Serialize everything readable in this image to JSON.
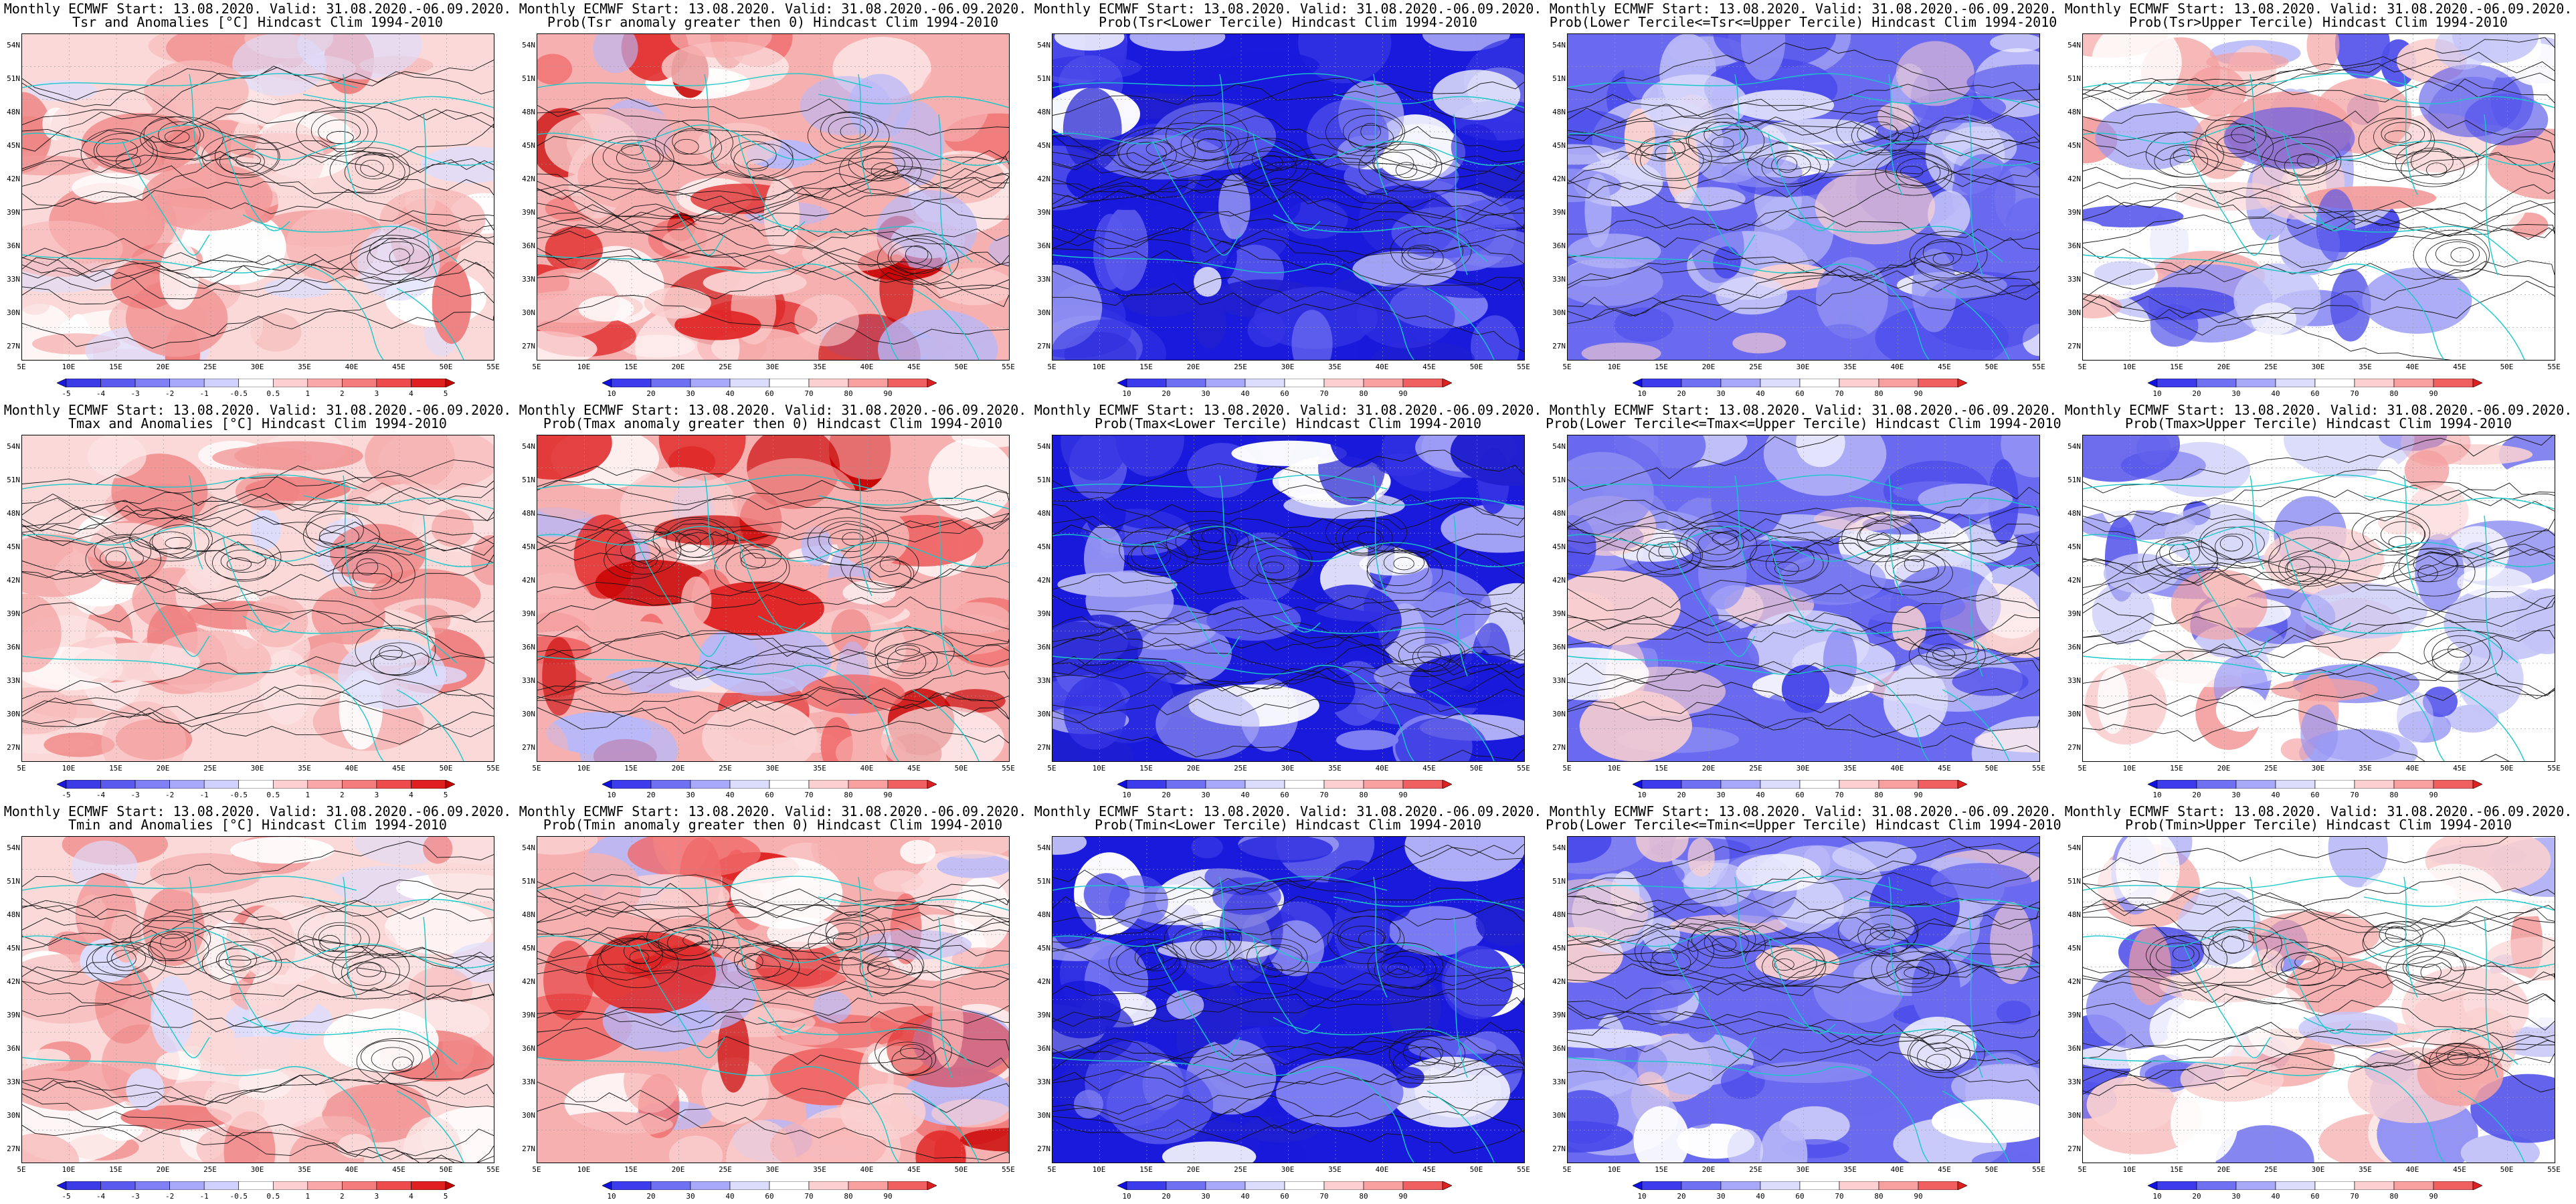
{
  "header": "Monthly ECMWF Start: 13.08.2020. Valid: 31.08.2020.-06.09.2020.",
  "latitude_labels": [
    "54N",
    "51N",
    "48N",
    "45N",
    "42N",
    "39N",
    "36N",
    "33N",
    "30N",
    "27N"
  ],
  "longitude_labels": [
    "5E",
    "10E",
    "15E",
    "20E",
    "25E",
    "30E",
    "35E",
    "40E",
    "45E",
    "50E",
    "55E"
  ],
  "anomaly_colorbar": {
    "labels": [
      "-5",
      "-4",
      "-3",
      "-2",
      "-1",
      "-0.5",
      "0.5",
      "1",
      "2",
      "3",
      "4",
      "5"
    ],
    "colors": [
      "#1a1adc",
      "#3c3ce6",
      "#5a5aee",
      "#8080f4",
      "#a8a8f8",
      "#d0d0fc",
      "#ffffff",
      "#fcd0d0",
      "#f8a8a8",
      "#f47c7c",
      "#ee4c4c",
      "#e02020",
      "#c80000"
    ]
  },
  "probability_colorbar": {
    "labels": [
      "10",
      "20",
      "30",
      "40",
      "60",
      "70",
      "80",
      "90"
    ],
    "colors": [
      "#1010e0",
      "#3c3cec",
      "#7070f2",
      "#a8a8f8",
      "#dcdcfc",
      "#ffffff",
      "#fcd0d0",
      "#f8a0a0",
      "#f06060",
      "#e02020"
    ]
  },
  "rows": [
    {
      "variable": "Tsr",
      "panels": [
        {
          "title": "Tsr and Anomalies [°C] Hindcast Clim 1994-2010",
          "colorbar": "anomaly",
          "pattern": "warm-mild"
        },
        {
          "title": "Prob(Tsr anomaly greater then 0) Hindcast Clim 1994-2010",
          "colorbar": "probability",
          "pattern": "warm"
        },
        {
          "title": "Prob(Tsr<Lower Tercile) Hindcast Clim 1994-2010",
          "colorbar": "probability",
          "pattern": "blue-strong"
        },
        {
          "title": "Prob(Lower Tercile<=Tsr<=Upper Tercile) Hindcast Clim 1994-2010",
          "colorbar": "probability",
          "pattern": "blue-medium"
        },
        {
          "title": "Prob(Tsr>Upper Tercile) Hindcast Clim 1994-2010",
          "colorbar": "probability",
          "pattern": "mixed"
        }
      ]
    },
    {
      "variable": "Tmax",
      "panels": [
        {
          "title": "Tmax and Anomalies [°C] Hindcast Clim 1994-2010",
          "colorbar": "anomaly",
          "pattern": "warm-mild"
        },
        {
          "title": "Prob(Tmax anomaly greater then 0) Hindcast Clim 1994-2010",
          "colorbar": "probability",
          "pattern": "warm"
        },
        {
          "title": "Prob(Tmax<Lower Tercile) Hindcast Clim 1994-2010",
          "colorbar": "probability",
          "pattern": "blue-strong"
        },
        {
          "title": "Prob(Lower Tercile<=Tmax<=Upper Tercile) Hindcast Clim 1994-2010",
          "colorbar": "probability",
          "pattern": "blue-medium"
        },
        {
          "title": "Prob(Tmax>Upper Tercile) Hindcast Clim 1994-2010",
          "colorbar": "probability",
          "pattern": "mixed"
        }
      ]
    },
    {
      "variable": "Tmin",
      "panels": [
        {
          "title": "Tmin and Anomalies [°C] Hindcast Clim 1994-2010",
          "colorbar": "anomaly",
          "pattern": "warm-mild"
        },
        {
          "title": "Prob(Tmin anomaly greater then 0) Hindcast Clim 1994-2010",
          "colorbar": "probability",
          "pattern": "warm"
        },
        {
          "title": "Prob(Tmin<Lower Tercile) Hindcast Clim 1994-2010",
          "colorbar": "probability",
          "pattern": "blue-strong"
        },
        {
          "title": "Prob(Lower Tercile<=Tmin<=Upper Tercile) Hindcast Clim 1994-2010",
          "colorbar": "probability",
          "pattern": "blue-medium"
        },
        {
          "title": "Prob(Tmin>Upper Tercile) Hindcast Clim 1994-2010",
          "colorbar": "probability",
          "pattern": "mixed"
        }
      ]
    }
  ]
}
